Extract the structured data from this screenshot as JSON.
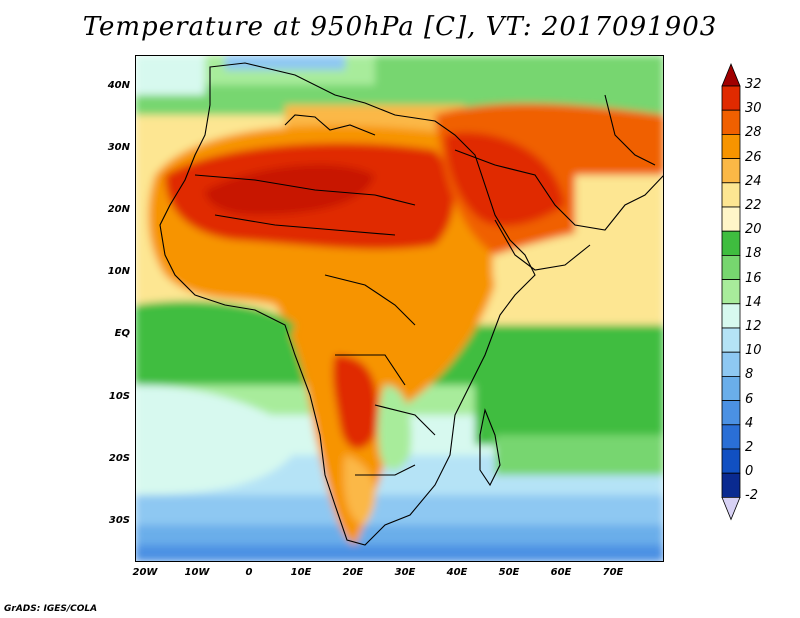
{
  "title": "Temperature at 950hPa [C], VT: 2017091903",
  "footer": "GrADS: IGES/COLA",
  "map": {
    "lat_labels": [
      "40N",
      "30N",
      "20N",
      "10N",
      "EQ",
      "10S",
      "20S",
      "30S"
    ],
    "lon_labels": [
      "20W",
      "10W",
      "0",
      "10E",
      "20E",
      "30E",
      "40E",
      "50E",
      "60E",
      "70E"
    ]
  },
  "colorbar": {
    "levels": [
      "32",
      "30",
      "28",
      "26",
      "24",
      "22",
      "20",
      "18",
      "16",
      "14",
      "12",
      "10",
      "8",
      "6",
      "4",
      "2",
      "0",
      "-2"
    ],
    "colors": [
      "#a00000",
      "#e02a00",
      "#f06000",
      "#f79400",
      "#fbb846",
      "#fde692",
      "#fff6c8",
      "#3fbd3f",
      "#77d66f",
      "#a8ec9b",
      "#d7f9ef",
      "#b5e3f6",
      "#8ec8f2",
      "#6aaeea",
      "#4b91e3",
      "#2a6fd6",
      "#1150c2",
      "#0a2a90",
      "#d8d2f5"
    ],
    "top_arrow_color": "#a00000",
    "bottom_arrow_color": "#d8d2f5"
  }
}
